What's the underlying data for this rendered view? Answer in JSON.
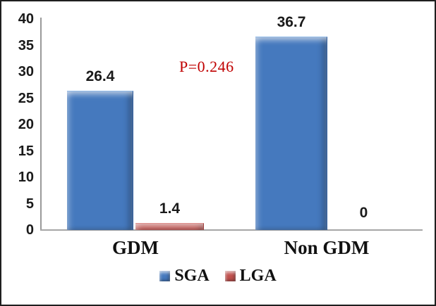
{
  "chart_data": {
    "type": "bar",
    "title": "",
    "categories": [
      "GDM",
      "Non GDM"
    ],
    "series": [
      {
        "name": "SGA",
        "values": [
          26.4,
          36.7
        ],
        "labels": [
          "26.4",
          "36.7"
        ],
        "color": "#4579BE",
        "color_dark": "#2F5D9E",
        "color_light": "#8FB9E8"
      },
      {
        "name": "LGA",
        "values": [
          1.4,
          0
        ],
        "labels": [
          "1.4",
          "0"
        ],
        "color": "#C0504D",
        "color_dark": "#9E3D3B",
        "color_light": "#E0908E"
      }
    ],
    "xlabel": "",
    "ylabel": "",
    "ylim": [
      0,
      40
    ],
    "yticks": [
      0,
      5,
      10,
      15,
      20,
      25,
      30,
      35,
      40
    ],
    "grid": false,
    "legend_position": "bottom",
    "annotation": "P=0.246",
    "annotation_color": "#C00000",
    "axis_color": "#A0A0A0",
    "text_color": "#1A1A1A"
  }
}
